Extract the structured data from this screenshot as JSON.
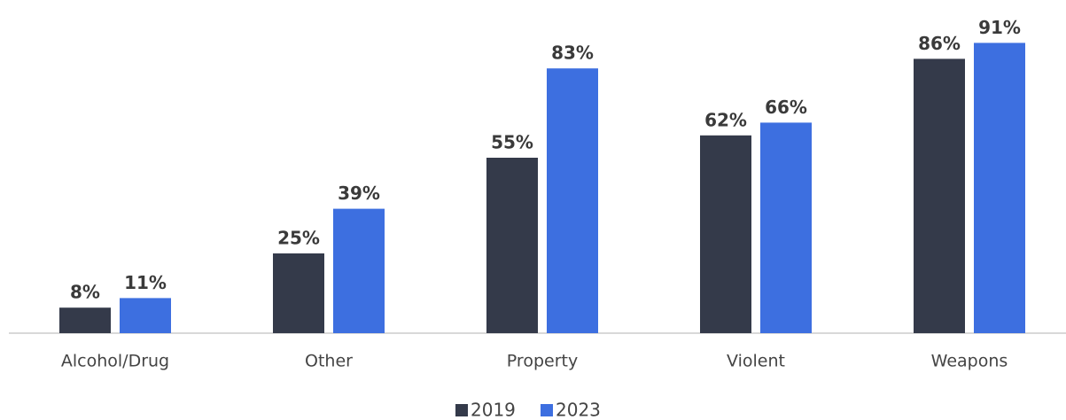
{
  "chart_data": {
    "type": "bar",
    "categories": [
      "Alcohol/Drug",
      "Other",
      "Property",
      "Violent",
      "Weapons"
    ],
    "series": [
      {
        "name": "2019",
        "color": "#343a4a",
        "values": [
          8,
          25,
          55,
          62,
          86
        ],
        "value_labels": [
          "8%",
          "25%",
          "55%",
          "62%",
          "86%"
        ]
      },
      {
        "name": "2023",
        "color": "#3d6fe0",
        "values": [
          11,
          39,
          83,
          66,
          91
        ],
        "value_labels": [
          "11%",
          "39%",
          "83%",
          "66%",
          "91%"
        ]
      }
    ]
  }
}
